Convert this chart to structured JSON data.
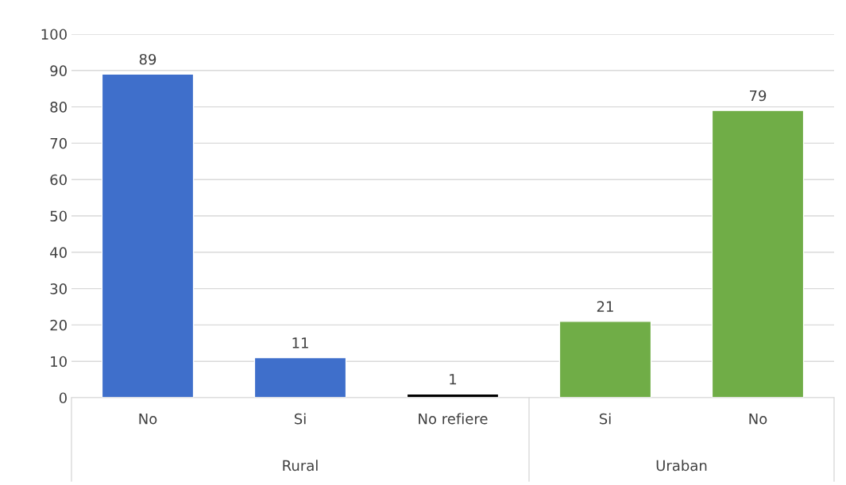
{
  "chart_data": {
    "type": "bar",
    "categories": [
      "No",
      "Si",
      "No refiere",
      "Si",
      "No"
    ],
    "series": [
      {
        "colors": [
          "#3f6fcb",
          "#3f6fcb",
          "#000000",
          null,
          null
        ],
        "values": [
          89,
          11,
          1,
          null,
          null
        ]
      },
      {
        "color": "#70ad47",
        "values": [
          null,
          null,
          null,
          21,
          79
        ]
      }
    ],
    "annotations": [
      "Rural",
      "Uraban"
    ],
    "ylim": [
      0,
      100
    ],
    "yticks": [
      0,
      10,
      20,
      30,
      40,
      50,
      60,
      70,
      80,
      90,
      100
    ],
    "grid": "y",
    "data_labels": true,
    "legend": false
  }
}
